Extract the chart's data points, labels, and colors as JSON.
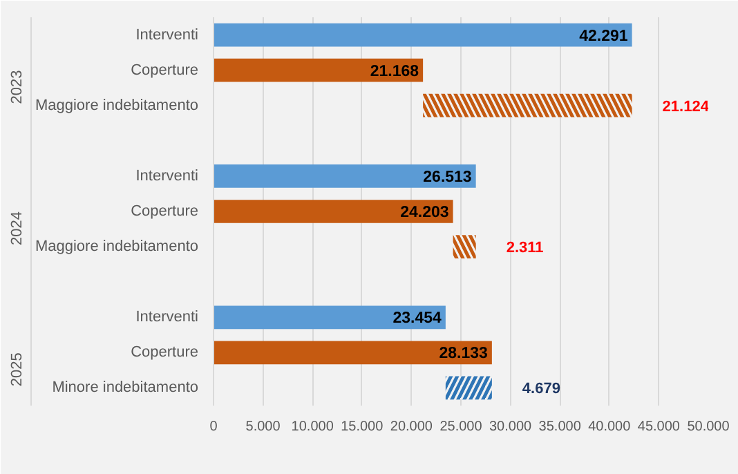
{
  "chart_data": {
    "type": "bar",
    "orientation": "horizontal",
    "categories": [
      "Interventi",
      "Coperture",
      "Maggiore indebitamento",
      null,
      "Interventi",
      "Coperture",
      "Maggiore indebitamento",
      null,
      "Interventi",
      "Coperture",
      "Minore indebitamento"
    ],
    "values": [
      42291,
      21168,
      21124,
      null,
      26513,
      24203,
      2311,
      null,
      23454,
      28133,
      4679
    ],
    "base": [
      null,
      null,
      21168,
      null,
      null,
      null,
      24203,
      null,
      null,
      null,
      23454
    ],
    "colors": [
      "#5b9bd5",
      "#c55a11",
      "#c55a11",
      null,
      "#5b9bd5",
      "#c55a11",
      "#c55a11",
      null,
      "#5b9bd5",
      "#c55a11",
      "#2e75b6"
    ],
    "value_labels": [
      "42.291",
      "21.168",
      "21.124",
      null,
      "26.513",
      "24.203",
      "2.311",
      null,
      "23.454",
      "28.133",
      "4.679"
    ],
    "annotations": [
      "2023",
      "2024",
      "2025"
    ],
    "xlim": [
      0,
      50000
    ],
    "xticks": [
      0,
      {
        "value": 5000,
        "label": "5.000"
      },
      {
        "value": 10000,
        "label": "10.000"
      },
      {
        "value": 15000,
        "label": "15.000"
      },
      {
        "value": 20000,
        "label": "20.000"
      },
      {
        "value": 25000,
        "label": "25.000"
      },
      {
        "value": 30000,
        "label": "30.000"
      },
      {
        "value": 35000,
        "label": "35.000"
      },
      {
        "value": 40000,
        "label": "40.000"
      },
      {
        "value": 45000,
        "label": "45.000"
      },
      {
        "value": 50000,
        "label": "50.000"
      }
    ],
    "grid": "x"
  }
}
